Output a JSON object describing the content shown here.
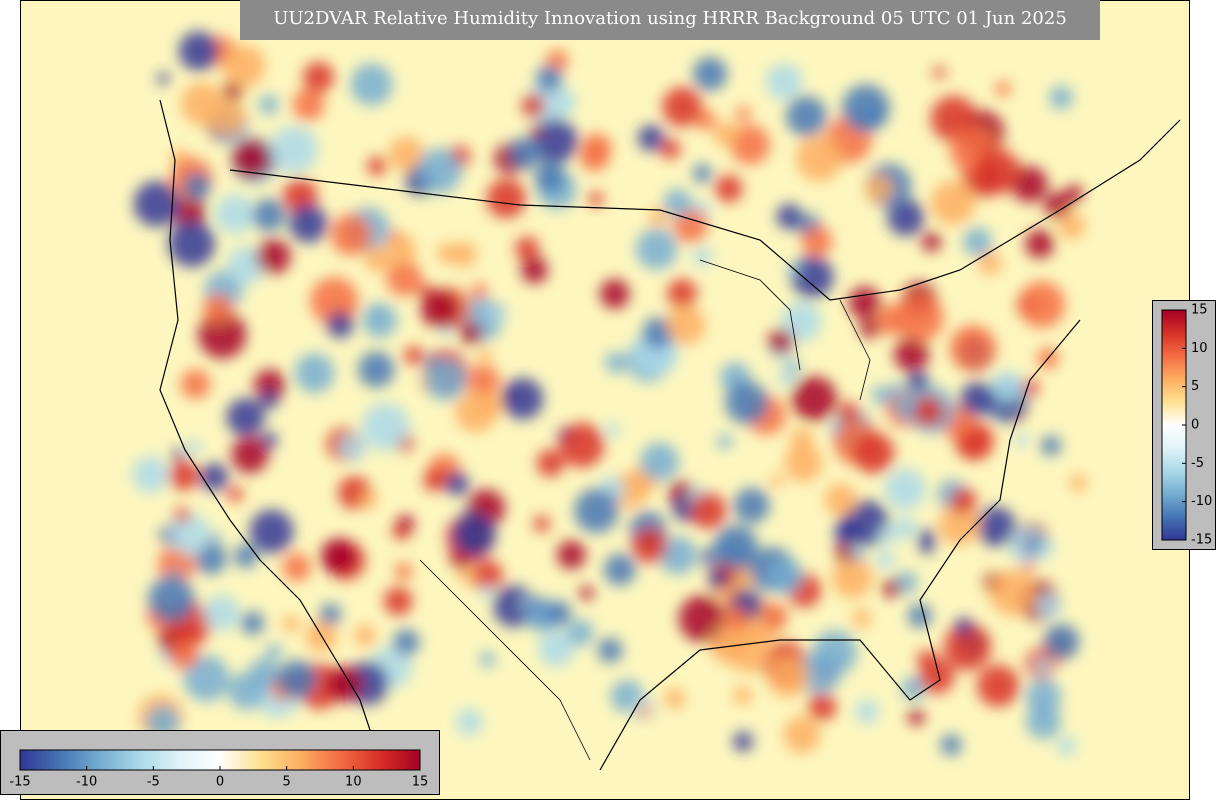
{
  "title": "UU2DVAR Relative Humidity Innovation using HRRR Background 05 UTC 01 Jun 2025",
  "colormap": [
    "#313695",
    "#4575b4",
    "#74add1",
    "#abd9e9",
    "#e0f3f8",
    "#ffffff",
    "#fee090",
    "#fdae61",
    "#f46d43",
    "#d73027",
    "#a50026"
  ],
  "background_color": "#fdf7bf",
  "colorbar_horizontal": {
    "lim": [
      -15,
      15
    ],
    "ticks": [
      -15,
      -10,
      -5,
      0,
      5,
      10,
      15
    ]
  },
  "colorbar_vertical": {
    "lim": [
      -15,
      15
    ],
    "ticks": [
      -15,
      -10,
      -5,
      0,
      5,
      10,
      15
    ]
  }
}
